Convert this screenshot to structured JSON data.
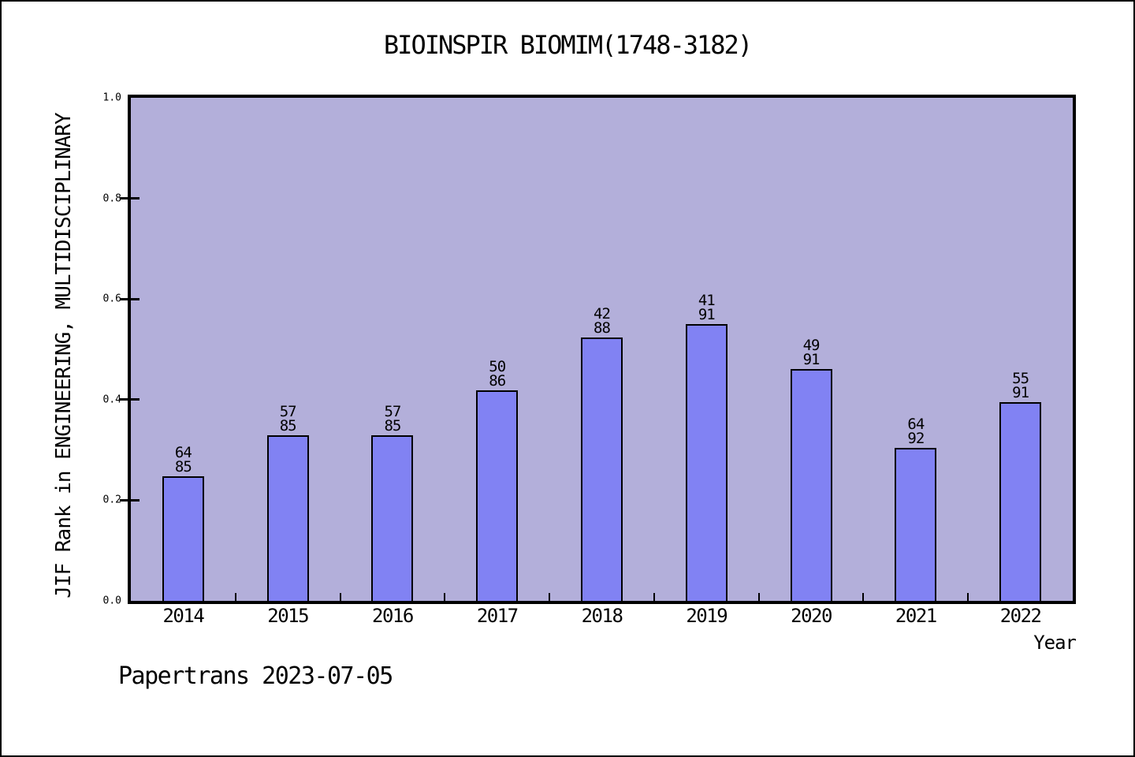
{
  "chart_data": {
    "type": "bar",
    "title": "BIOINSPIR BIOMIM(1748-3182)",
    "xlabel": "Year",
    "ylabel": "JIF Rank in ENGINEERING, MULTIDISCIPLINARY",
    "annotation": "Papertrans 2023-07-05",
    "categories": [
      "2014",
      "2015",
      "2016",
      "2017",
      "2018",
      "2019",
      "2020",
      "2021",
      "2022"
    ],
    "bars": [
      {
        "year": "2014",
        "rank": 64,
        "total": 85,
        "value": 0.247
      },
      {
        "year": "2015",
        "rank": 57,
        "total": 85,
        "value": 0.329
      },
      {
        "year": "2016",
        "rank": 57,
        "total": 85,
        "value": 0.329
      },
      {
        "year": "2017",
        "rank": 50,
        "total": 86,
        "value": 0.419
      },
      {
        "year": "2018",
        "rank": 42,
        "total": 88,
        "value": 0.523
      },
      {
        "year": "2019",
        "rank": 41,
        "total": 91,
        "value": 0.549
      },
      {
        "year": "2020",
        "rank": 49,
        "total": 91,
        "value": 0.462
      },
      {
        "year": "2021",
        "rank": 64,
        "total": 92,
        "value": 0.304
      },
      {
        "year": "2022",
        "rank": 55,
        "total": 91,
        "value": 0.396
      }
    ],
    "ylim": [
      0.0,
      1.0
    ],
    "yticks": [
      0.0,
      0.2,
      0.4,
      0.6,
      0.8,
      1.0
    ],
    "grid": "off",
    "legend": "none",
    "colors": {
      "bar_fill": "#8182f3",
      "bar_edge": "#000000",
      "plot_bg": "#b3afda",
      "frame": "#000000",
      "canvas_bg": "#ffffff"
    }
  }
}
